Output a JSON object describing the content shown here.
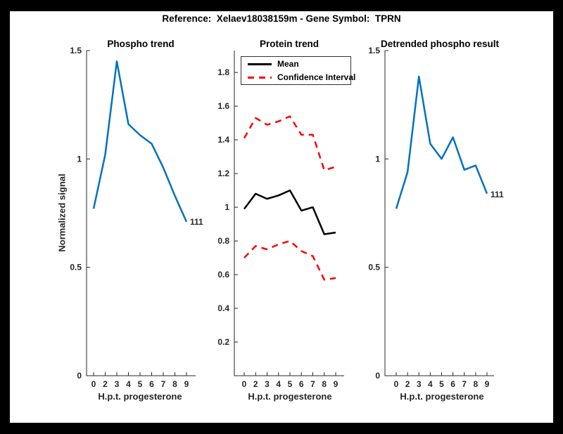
{
  "figure": {
    "title": "Reference:  Xelaev18038159m - Gene Symbol:  TPRN",
    "frame_color": "#000000",
    "background_color": "#ffffff"
  },
  "colors": {
    "blue": "#0072BD",
    "red": "#ff0000",
    "black": "#000000",
    "axis": "#262626"
  },
  "chart_data": [
    {
      "type": "line",
      "title": "Phospho trend",
      "xlabel": "H.p.t. progesterone",
      "ylabel": "Normalized signal",
      "categories": [
        "0",
        "2",
        "3",
        "4",
        "5",
        "6",
        "7",
        "8",
        "9"
      ],
      "series": [
        {
          "name": "phospho-trend",
          "color": "blue",
          "style": "solid",
          "values": [
            0.77,
            1.02,
            1.45,
            1.16,
            1.11,
            1.07,
            0.96,
            0.83,
            0.71
          ]
        }
      ],
      "ylim": [
        0,
        1.5
      ],
      "yticks": [
        0,
        0.5,
        1,
        1.5
      ],
      "ytick_labels": [
        "0",
        "0.5",
        "1",
        "1.5"
      ],
      "grid": false,
      "end_label": "111"
    },
    {
      "type": "line",
      "title": "Protein trend",
      "xlabel": "H.p.t. progesterone",
      "ylabel": "",
      "categories": [
        "0",
        "2",
        "3",
        "4",
        "5",
        "6",
        "7",
        "8",
        "9"
      ],
      "series": [
        {
          "name": "mean",
          "color": "black",
          "style": "solid",
          "values": [
            0.99,
            1.08,
            1.05,
            1.07,
            1.1,
            0.98,
            1.0,
            0.84,
            0.85
          ]
        },
        {
          "name": "confidence-interval-upper",
          "color": "red",
          "style": "dashed",
          "values": [
            1.41,
            1.53,
            1.49,
            1.51,
            1.54,
            1.43,
            1.43,
            1.22,
            1.24
          ]
        },
        {
          "name": "confidence-interval-lower",
          "color": "red",
          "style": "dashed",
          "values": [
            0.7,
            0.77,
            0.75,
            0.78,
            0.8,
            0.74,
            0.71,
            0.57,
            0.58
          ]
        }
      ],
      "ylim": [
        0,
        1.93
      ],
      "yticks": [
        0.2,
        0.4,
        0.6,
        0.8,
        1.0,
        1.2,
        1.4,
        1.6,
        1.8
      ],
      "ytick_labels": [
        "0.2",
        "0.4",
        "0.6",
        "0.8",
        "1",
        "1.2",
        "1.4",
        "1.6",
        "1.8"
      ],
      "grid": false,
      "legend": {
        "position": "top-left",
        "entries": [
          {
            "label": "Mean",
            "color": "black",
            "style": "solid"
          },
          {
            "label": "Confidence Interval",
            "color": "red",
            "style": "dashed"
          }
        ]
      }
    },
    {
      "type": "line",
      "title": "Detrended phospho result",
      "xlabel": "H.p.t. progesterone",
      "ylabel": "",
      "categories": [
        "0",
        "2",
        "3",
        "4",
        "5",
        "6",
        "7",
        "8",
        "9"
      ],
      "series": [
        {
          "name": "detrended-phospho",
          "color": "blue",
          "style": "solid",
          "values": [
            0.77,
            0.94,
            1.38,
            1.07,
            1.0,
            1.1,
            0.95,
            0.97,
            0.84
          ]
        }
      ],
      "ylim": [
        0,
        1.5
      ],
      "yticks": [
        0,
        0.5,
        1,
        1.5
      ],
      "ytick_labels": [
        "0",
        "0.5",
        "1",
        "1.5"
      ],
      "grid": false,
      "end_label": "111"
    }
  ]
}
